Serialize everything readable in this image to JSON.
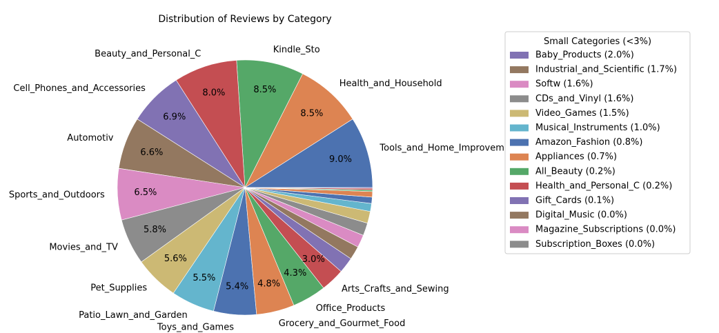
{
  "chart_data": {
    "type": "pie",
    "title": "Distribution of Reviews by Category",
    "start_angle_deg": 0,
    "direction": "counterclockwise",
    "slices": [
      {
        "label": "Tools_and_Home_Improvemen",
        "value": 9.0,
        "pct_label": "9.0%",
        "color": "#4c72b0"
      },
      {
        "label": "Health_and_Household",
        "value": 8.5,
        "pct_label": "8.5%",
        "color": "#dd8452"
      },
      {
        "label": "Kindle_Sto",
        "value": 8.5,
        "pct_label": "8.5%",
        "color": "#55a868"
      },
      {
        "label": "Beauty_and_Personal_C",
        "value": 8.0,
        "pct_label": "8.0%",
        "color": "#c44e52"
      },
      {
        "label": "Cell_Phones_and_Accessories",
        "value": 6.9,
        "pct_label": "6.9%",
        "color": "#8172b3"
      },
      {
        "label": "Automotiv",
        "value": 6.6,
        "pct_label": "6.6%",
        "color": "#937860"
      },
      {
        "label": "Sports_and_Outdoors",
        "value": 6.5,
        "pct_label": "6.5%",
        "color": "#da8bc3"
      },
      {
        "label": "Movies_and_TV",
        "value": 5.8,
        "pct_label": "5.8%",
        "color": "#8c8c8c"
      },
      {
        "label": "Pet_Supplies",
        "value": 5.6,
        "pct_label": "5.6%",
        "color": "#ccb974"
      },
      {
        "label": "Patio_Lawn_and_Garden",
        "value": 5.5,
        "pct_label": "5.5%",
        "color": "#64b5cd"
      },
      {
        "label": "Toys_and_Games",
        "value": 5.4,
        "pct_label": "5.4%",
        "color": "#4c72b0"
      },
      {
        "label": "Grocery_and_Gourmet_Food",
        "value": 4.8,
        "pct_label": "4.8%",
        "color": "#dd8452"
      },
      {
        "label": "Office_Products",
        "value": 4.3,
        "pct_label": "4.3%",
        "color": "#55a868"
      },
      {
        "label": "Arts_Crafts_and_Sewing",
        "value": 3.0,
        "pct_label": "3.0%",
        "color": "#c44e52"
      },
      {
        "label": "",
        "value": 2.0,
        "pct_label": "",
        "color": "#8172b3"
      },
      {
        "label": "",
        "value": 1.7,
        "pct_label": "",
        "color": "#937860"
      },
      {
        "label": "",
        "value": 1.6,
        "pct_label": "",
        "color": "#da8bc3"
      },
      {
        "label": "",
        "value": 1.6,
        "pct_label": "",
        "color": "#8c8c8c"
      },
      {
        "label": "",
        "value": 1.5,
        "pct_label": "",
        "color": "#ccb974"
      },
      {
        "label": "",
        "value": 1.0,
        "pct_label": "",
        "color": "#64b5cd"
      },
      {
        "label": "",
        "value": 0.8,
        "pct_label": "",
        "color": "#4c72b0"
      },
      {
        "label": "",
        "value": 0.7,
        "pct_label": "",
        "color": "#dd8452"
      },
      {
        "label": "",
        "value": 0.2,
        "pct_label": "",
        "color": "#55a868"
      },
      {
        "label": "",
        "value": 0.2,
        "pct_label": "",
        "color": "#c44e52"
      },
      {
        "label": "",
        "value": 0.1,
        "pct_label": "",
        "color": "#8172b3"
      },
      {
        "label": "",
        "value": 0.0,
        "pct_label": "",
        "color": "#937860"
      },
      {
        "label": "",
        "value": 0.0,
        "pct_label": "",
        "color": "#da8bc3"
      },
      {
        "label": "",
        "value": 0.0,
        "pct_label": "",
        "color": "#8c8c8c"
      }
    ],
    "legend": {
      "title": "Small Categories (<3%)",
      "placement": "right",
      "entries": [
        {
          "text": "Baby_Products (2.0%)",
          "color": "#8172b3"
        },
        {
          "text": "Industrial_and_Scientific (1.7%)",
          "color": "#937860"
        },
        {
          "text": "Softw (1.6%)",
          "color": "#da8bc3"
        },
        {
          "text": "CDs_and_Vinyl (1.6%)",
          "color": "#8c8c8c"
        },
        {
          "text": "Video_Games (1.5%)",
          "color": "#ccb974"
        },
        {
          "text": "Musical_Instruments (1.0%)",
          "color": "#64b5cd"
        },
        {
          "text": "Amazon_Fashion (0.8%)",
          "color": "#4c72b0"
        },
        {
          "text": "Appliances (0.7%)",
          "color": "#dd8452"
        },
        {
          "text": "All_Beauty (0.2%)",
          "color": "#55a868"
        },
        {
          "text": "Health_and_Personal_C (0.2%)",
          "color": "#c44e52"
        },
        {
          "text": "Gift_Cards (0.1%)",
          "color": "#8172b3"
        },
        {
          "text": "Digital_Music (0.0%)",
          "color": "#937860"
        },
        {
          "text": "Magazine_Subscriptions (0.0%)",
          "color": "#da8bc3"
        },
        {
          "text": "Subscription_Boxes (0.0%)",
          "color": "#8c8c8c"
        }
      ]
    }
  }
}
